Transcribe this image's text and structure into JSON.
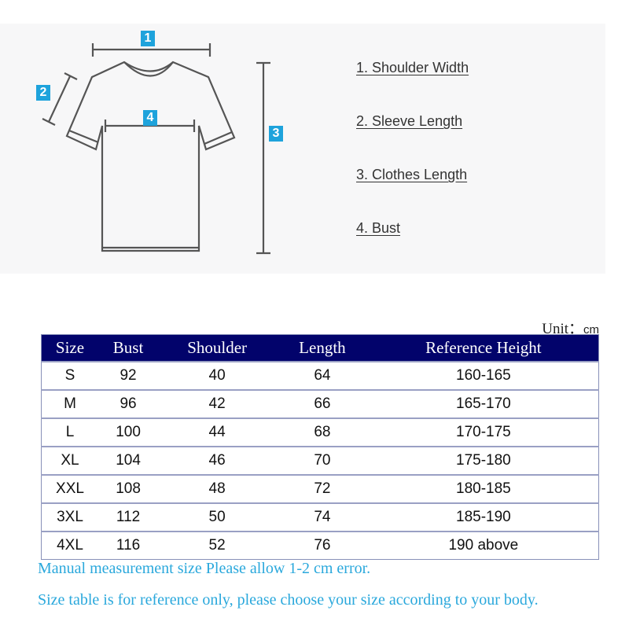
{
  "diagram": {
    "badges": [
      "1",
      "2",
      "3",
      "4"
    ],
    "legend": [
      "1. Shoulder Width",
      "2. Sleeve Length",
      "3. Clothes Length",
      "4. Bust"
    ]
  },
  "unit": {
    "label": "Unit：",
    "value": "cm"
  },
  "table": {
    "headers": [
      "Size",
      "Bust",
      "Shoulder",
      "Length",
      "Reference Height"
    ],
    "rows": [
      [
        "S",
        "92",
        "40",
        "64",
        "160-165"
      ],
      [
        "M",
        "96",
        "42",
        "66",
        "165-170"
      ],
      [
        "L",
        "100",
        "44",
        "68",
        "170-175"
      ],
      [
        "XL",
        "104",
        "46",
        "70",
        "175-180"
      ],
      [
        "XXL",
        "108",
        "48",
        "72",
        "180-185"
      ],
      [
        "3XL",
        "112",
        "50",
        "74",
        "185-190"
      ],
      [
        "4XL",
        "116",
        "52",
        "76",
        "190 above"
      ]
    ]
  },
  "notes": [
    "Manual measurement size Please allow 1-2 cm error.",
    "Size table is for reference only, please choose your size according to your body."
  ],
  "colors": {
    "header_bg": "#02036b",
    "badge": "#1ea3dc",
    "note_text": "#2aa8dc"
  }
}
